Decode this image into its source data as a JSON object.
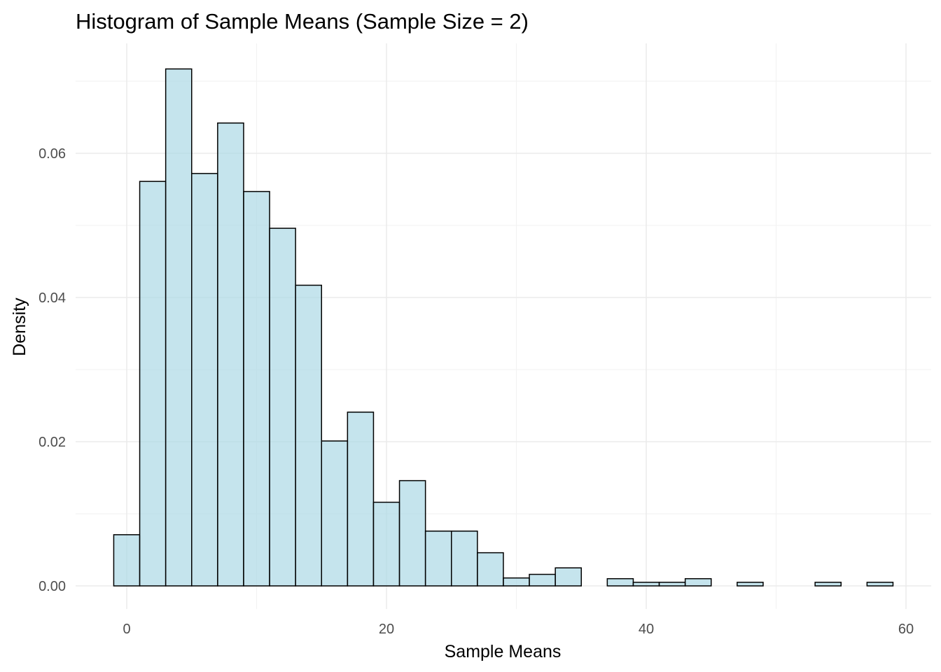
{
  "chart_data": {
    "type": "bar",
    "title": "Histogram of Sample Means (Sample Size = 2)",
    "xlabel": "Sample Means",
    "ylabel": "Density",
    "xlim": [
      -3.5,
      62
    ],
    "ylim": [
      -0.0032,
      0.075
    ],
    "x_ticks": [
      0,
      20,
      40,
      60
    ],
    "x_tick_labels": [
      "0",
      "20",
      "40",
      "60"
    ],
    "y_ticks": [
      0,
      0.02,
      0.04,
      0.06
    ],
    "y_tick_labels": [
      "0.00",
      "0.02",
      "0.04",
      "0.06"
    ],
    "grid": true,
    "bin_width": 2,
    "bin_centers": [
      0,
      2,
      4,
      6,
      8,
      10,
      12,
      14,
      16,
      18,
      20,
      22,
      24,
      26,
      28,
      30,
      32,
      34,
      36,
      38,
      40,
      42,
      44,
      46,
      48,
      50,
      52,
      54,
      56,
      58
    ],
    "values": [
      0.0071,
      0.0561,
      0.0717,
      0.0572,
      0.0642,
      0.0547,
      0.0496,
      0.0417,
      0.0201,
      0.0241,
      0.0116,
      0.0146,
      0.0076,
      0.0076,
      0.0046,
      0.0011,
      0.0016,
      0.0025,
      0,
      0.001,
      0.0005,
      0.0005,
      0.001,
      0,
      0.0005,
      0,
      0,
      0.0005,
      0,
      0.0005
    ],
    "fill_color": "#add8e6",
    "edge_color": "#000000"
  }
}
